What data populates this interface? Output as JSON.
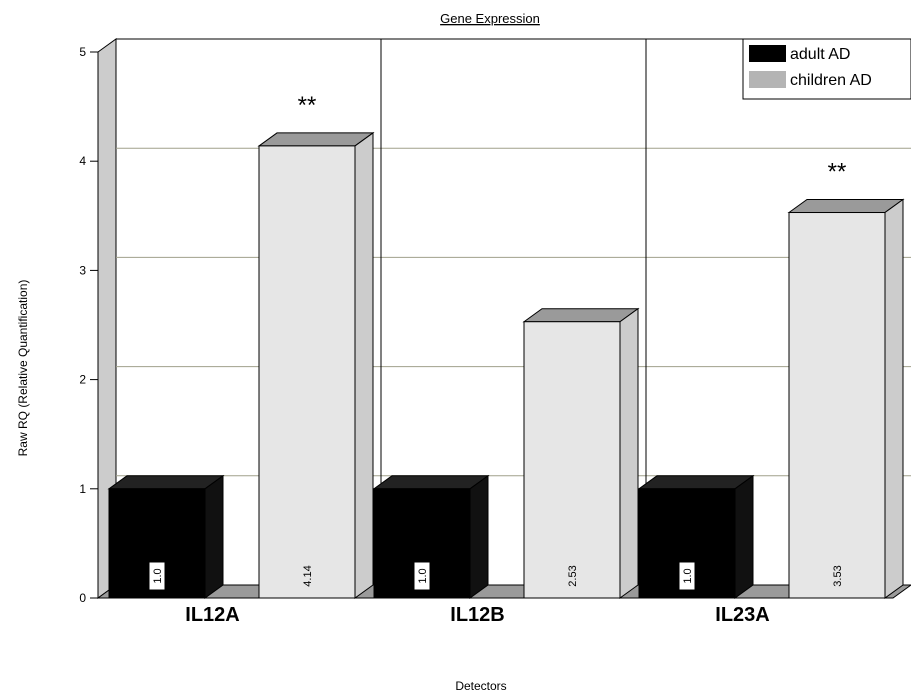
{
  "chart_data": {
    "type": "bar",
    "title": "Gene Expression",
    "xlabel": "Detectors",
    "ylabel": "Raw RQ (Relative Quantification)",
    "ylim": [
      0,
      5
    ],
    "yticks": [
      "0",
      "1",
      "2",
      "3",
      "4",
      "5"
    ],
    "categories": [
      "IL12A",
      "IL12B",
      "IL23A"
    ],
    "series": [
      {
        "name": "adult AD",
        "color": "#000000",
        "values": [
          1.0,
          1.0,
          1.0
        ],
        "labels": [
          "1.0",
          "1.0",
          "1.0"
        ]
      },
      {
        "name": "children AD",
        "color": "#e6e6e6",
        "values": [
          4.14,
          2.53,
          3.53
        ],
        "labels": [
          "4.14",
          "2.53",
          "3.53"
        ]
      }
    ],
    "annotations": [
      "**",
      "",
      "**"
    ],
    "legend_position": "top-right",
    "grid": true,
    "style": "3d"
  }
}
